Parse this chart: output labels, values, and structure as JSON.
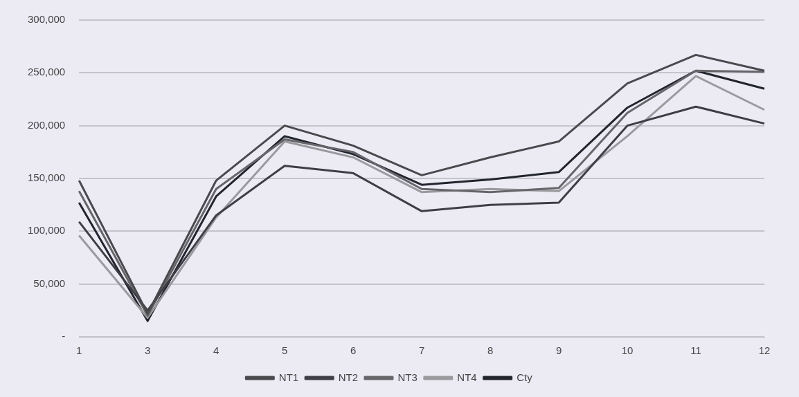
{
  "chart_data": {
    "type": "line",
    "categories": [
      "1",
      "3",
      "4",
      "5",
      "6",
      "7",
      "8",
      "9",
      "10",
      "11",
      "12"
    ],
    "series": [
      {
        "name": "NT1",
        "color": "#4a4a4e",
        "values": [
          148000,
          22000,
          148000,
          200000,
          181000,
          153000,
          170000,
          185000,
          240000,
          267000,
          252000
        ]
      },
      {
        "name": "NT2",
        "color": "#3e3e44",
        "values": [
          109000,
          25000,
          115000,
          162000,
          155000,
          119000,
          125000,
          127000,
          200000,
          218000,
          202000
        ]
      },
      {
        "name": "NT3",
        "color": "#66666a",
        "values": [
          138000,
          20000,
          140000,
          187000,
          175000,
          140000,
          137000,
          141000,
          212000,
          252000,
          251000
        ]
      },
      {
        "name": "NT4",
        "color": "#9a9a9e",
        "values": [
          96000,
          18000,
          113000,
          185000,
          170000,
          137000,
          140000,
          138000,
          190000,
          247000,
          215000
        ]
      },
      {
        "name": "Cty",
        "color": "#23252e",
        "values": [
          127000,
          15000,
          133000,
          190000,
          173000,
          144000,
          149000,
          156000,
          217000,
          252000,
          235000
        ]
      }
    ],
    "ylim": [
      0,
      300000
    ],
    "yticks": [
      {
        "value": 0,
        "label": "-"
      },
      {
        "value": 50000,
        "label": "50,000"
      },
      {
        "value": 100000,
        "label": "100,000"
      },
      {
        "value": 150000,
        "label": "150,000"
      },
      {
        "value": 200000,
        "label": "200,000"
      },
      {
        "value": 250000,
        "label": "250,000"
      },
      {
        "value": 300000,
        "label": "300,000"
      }
    ],
    "grid": "y",
    "legend": "bottom",
    "marker": "none",
    "line_style": "solid"
  }
}
